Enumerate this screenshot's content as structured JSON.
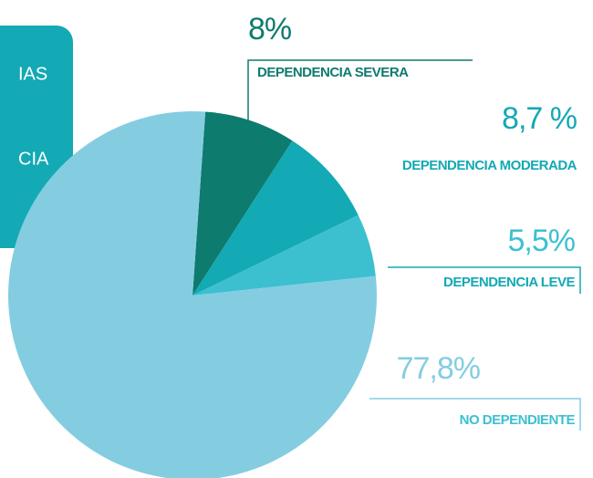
{
  "chart_data": {
    "type": "pie",
    "categories": [
      "DEPENDENCIA SEVERA",
      "DEPENDENCIA MODERADA",
      "DEPENDENCIA LEVE",
      "NO DEPENDIENTE"
    ],
    "values": [
      8,
      8.7,
      5.5,
      77.8
    ],
    "value_labels": [
      "8%",
      "8,7 %",
      "5,5%",
      "77,8%"
    ],
    "colors": [
      "#0e7b6f",
      "#13a9b5",
      "#3cc0d0",
      "#84cde1"
    ],
    "side_box_lines": [
      "IAS",
      "CIA"
    ]
  }
}
